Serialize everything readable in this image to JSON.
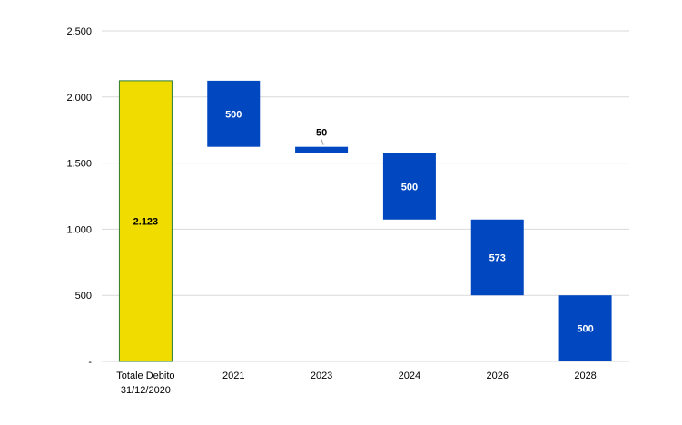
{
  "chart_data": {
    "type": "bar",
    "subtype": "waterfall",
    "categories": [
      [
        "Totale Debito",
        "31/12/2020"
      ],
      [
        "2021"
      ],
      [
        "2023"
      ],
      [
        "2024"
      ],
      [
        "2026"
      ],
      [
        "2028"
      ]
    ],
    "values": [
      2123,
      500,
      50,
      500,
      573,
      500
    ],
    "data_labels": [
      "2.123",
      "500",
      "50",
      "500",
      "573",
      "500"
    ],
    "bar_kinds": [
      "total",
      "decrease",
      "decrease",
      "decrease",
      "decrease",
      "decrease"
    ],
    "ylim": [
      0,
      2500
    ],
    "yticks": [
      0,
      500,
      1000,
      1500,
      2000,
      2500
    ],
    "ytick_labels": [
      "-",
      "500",
      "1.000",
      "1.500",
      "2.000",
      "2.500"
    ],
    "grid": true,
    "colors": {
      "total_fill": "#f1dc00",
      "total_stroke": "#2e7d32",
      "decrease_fill": "#0047c0",
      "grid": "#d9d9d9",
      "total_label": "#000000",
      "decrease_label": "#ffffff",
      "small_label": "#000000"
    }
  }
}
